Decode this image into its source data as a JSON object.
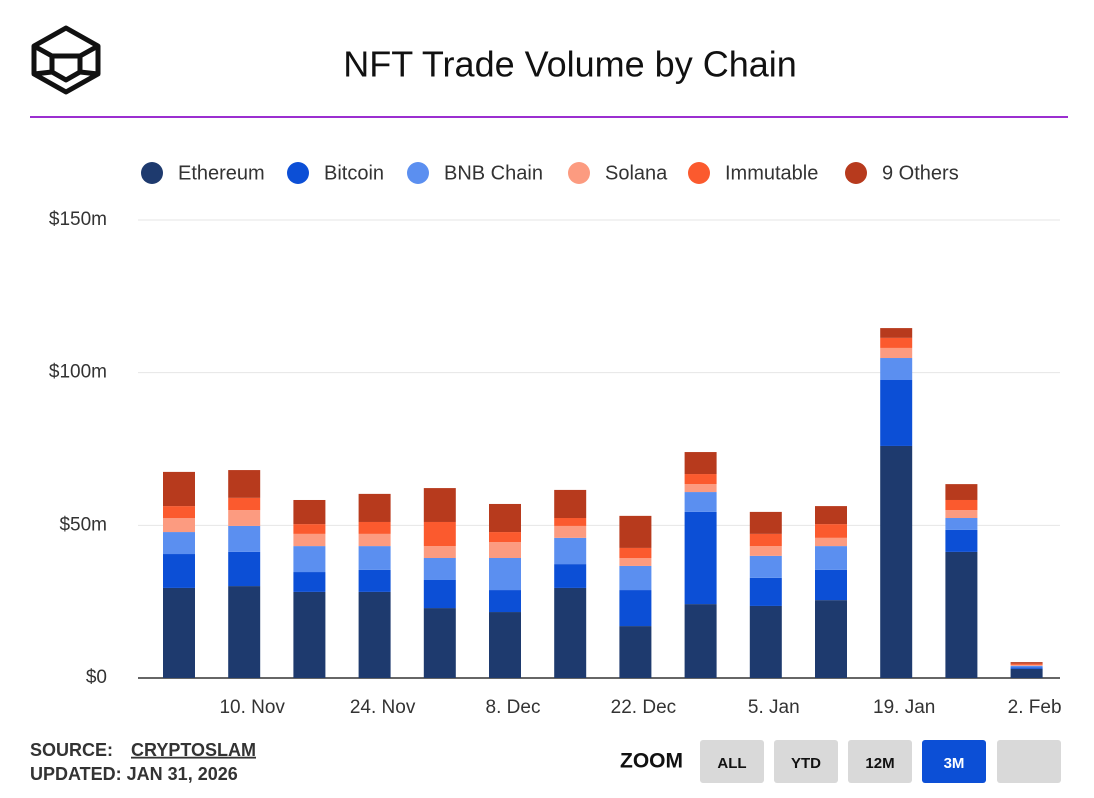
{
  "chart_data": {
    "type": "stacked-bar",
    "title": "NFT Trade Volume by Chain",
    "categories": [
      null,
      "10. Nov",
      null,
      "24. Nov",
      null,
      "8. Dec",
      null,
      "22. Dec",
      null,
      "5. Jan",
      null,
      "19. Jan",
      null,
      "2. Feb"
    ],
    "series": [
      {
        "name": "Ethereum",
        "color": "#1e3a6e",
        "values": [
          29.5,
          30.1,
          28.2,
          28.2,
          22.9,
          21.6,
          29.5,
          17.0,
          24.2,
          23.6,
          25.5,
          76.0,
          41.3,
          3.0
        ]
      },
      {
        "name": "Bitcoin",
        "color": "#0c4fd6",
        "values": [
          11.1,
          11.2,
          6.5,
          7.2,
          9.2,
          7.2,
          7.8,
          11.8,
          30.2,
          9.2,
          9.9,
          21.6,
          7.2,
          0.5
        ]
      },
      {
        "name": "BNB Chain",
        "color": "#5b8ff0",
        "values": [
          7.2,
          8.5,
          8.5,
          7.8,
          7.2,
          10.5,
          8.6,
          7.9,
          6.5,
          7.2,
          7.8,
          7.2,
          3.9,
          0.5
        ]
      },
      {
        "name": "Solana",
        "color": "#fc9b80",
        "values": [
          4.6,
          5.2,
          4.0,
          4.0,
          3.9,
          5.2,
          3.9,
          2.6,
          2.6,
          3.2,
          2.7,
          3.3,
          2.6,
          0.3
        ]
      },
      {
        "name": "Immutable",
        "color": "#fb5a2e",
        "values": [
          3.9,
          4.0,
          3.2,
          3.9,
          7.9,
          3.3,
          2.6,
          3.3,
          3.3,
          4.0,
          4.5,
          3.3,
          3.3,
          0.4
        ]
      },
      {
        "name": "9 Others",
        "color": "#b73a1d",
        "values": [
          11.2,
          9.1,
          7.9,
          9.2,
          11.1,
          9.2,
          9.2,
          10.5,
          7.2,
          7.2,
          5.9,
          3.2,
          5.2,
          0.5
        ]
      }
    ],
    "ylim": [
      0,
      150
    ],
    "yticks": [
      {
        "value": 0,
        "label": "$0"
      },
      {
        "value": 50,
        "label": "$50m"
      },
      {
        "value": 100,
        "label": "$100m"
      },
      {
        "value": 150,
        "label": "$150m"
      }
    ],
    "grid": true,
    "legend": "top"
  },
  "footer": {
    "source_label": "SOURCE:",
    "source": "CRYPTOSLAM",
    "updated": "UPDATED: JAN 31, 2026"
  },
  "zoom": {
    "label": "ZOOM",
    "buttons": [
      "ALL",
      "YTD",
      "12M",
      "3M"
    ],
    "active": "3M"
  }
}
